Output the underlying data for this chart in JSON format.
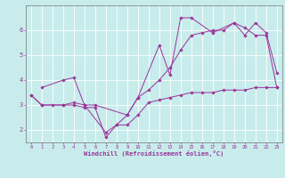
{
  "xlabel": "Windchill (Refroidissement éolien,°C)",
  "background_color": "#c8ecec",
  "line_color": "#993399",
  "grid_color": "#aadddd",
  "xlim": [
    -0.5,
    23.5
  ],
  "ylim": [
    1.5,
    7.0
  ],
  "yticks": [
    2,
    3,
    4,
    5,
    6
  ],
  "xticks": [
    0,
    1,
    2,
    3,
    4,
    5,
    6,
    7,
    8,
    9,
    10,
    11,
    12,
    13,
    14,
    15,
    16,
    17,
    18,
    19,
    20,
    21,
    22,
    23
  ],
  "series": [
    {
      "x": [
        0,
        1,
        2,
        3,
        4,
        5,
        6,
        7,
        8,
        9,
        10,
        11,
        12,
        13,
        14,
        15,
        16,
        17,
        18,
        19,
        20,
        21,
        22,
        23
      ],
      "y": [
        3.4,
        3.0,
        3.0,
        3.0,
        3.0,
        2.9,
        2.9,
        1.7,
        2.2,
        2.2,
        2.6,
        3.1,
        3.2,
        3.3,
        3.4,
        3.5,
        3.5,
        3.5,
        3.6,
        3.6,
        3.6,
        3.7,
        3.7,
        3.7
      ]
    },
    {
      "x": [
        1,
        3,
        4,
        5,
        7,
        8,
        9,
        10,
        12,
        13,
        14,
        15,
        17,
        19,
        20,
        21,
        22,
        23
      ],
      "y": [
        3.7,
        4.0,
        4.1,
        3.0,
        1.9,
        2.2,
        2.6,
        3.3,
        5.4,
        4.2,
        6.5,
        6.5,
        5.9,
        6.3,
        5.8,
        6.3,
        5.9,
        4.3
      ]
    },
    {
      "x": [
        0,
        1,
        3,
        4,
        5,
        6,
        9,
        10,
        11,
        12,
        13,
        14,
        15,
        16,
        17,
        18,
        19,
        20,
        21,
        22,
        23
      ],
      "y": [
        3.4,
        3.0,
        3.0,
        3.1,
        3.0,
        3.0,
        2.6,
        3.3,
        3.6,
        4.0,
        4.5,
        5.2,
        5.8,
        5.9,
        6.0,
        6.0,
        6.3,
        6.1,
        5.8,
        5.8,
        3.7
      ]
    }
  ]
}
